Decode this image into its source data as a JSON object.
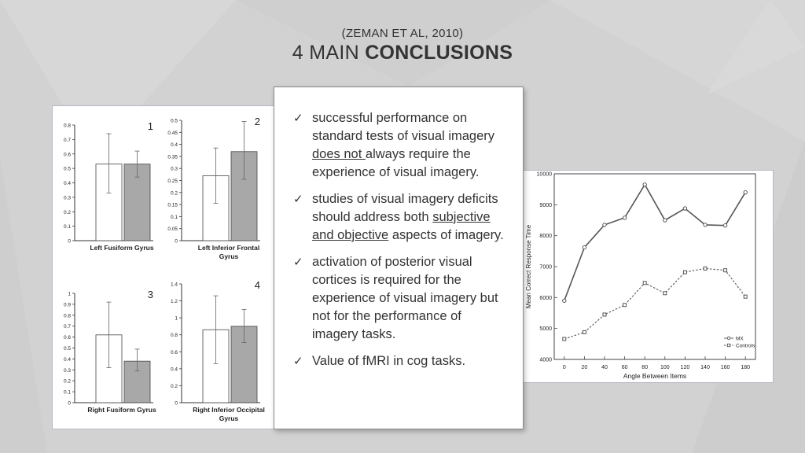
{
  "slide": {
    "subtitle": "(ZEMAN ET AL, 2010)",
    "title_plain": "4 MAIN ",
    "title_bold": "CONCLUSIONS",
    "background_color": "#d2d2d2"
  },
  "bullets": [
    {
      "pre": "successful performance on standard tests of visual imagery ",
      "underlined": "does not ",
      "post": "always require the experience of visual imagery."
    },
    {
      "pre": "studies of visual imagery deficits should address both ",
      "underlined": "subjective and objective",
      "post": " aspects of imagery."
    },
    {
      "pre": "activation of posterior visual cortices is required for the experience of visual imagery but not for the performance of imagery tasks.",
      "underlined": "",
      "post": ""
    },
    {
      "pre": "Value of fMRI in cog tasks.",
      "underlined": "",
      "post": ""
    }
  ],
  "icons": {
    "bullet": "checkmark-icon"
  },
  "chart_data": [
    {
      "type": "bar",
      "panel_number": "1",
      "xlabel": "Left Fusiform Gyrus",
      "ylim": [
        0,
        0.8
      ],
      "yticks": [
        "0",
        "0.1",
        "0.2",
        "0.3",
        "0.4",
        "0.5",
        "0.6",
        "0.7",
        "0.8"
      ],
      "bars": [
        {
          "value": 0.53,
          "err_low": 0.33,
          "err_high": 0.74,
          "fill": "#ffffff"
        },
        {
          "value": 0.53,
          "err_low": 0.44,
          "err_high": 0.62,
          "fill": "#a8a8a8"
        }
      ]
    },
    {
      "type": "bar",
      "panel_number": "2",
      "xlabel": "Left Inferior Frontal Gyrus",
      "ylim": [
        0,
        0.5
      ],
      "yticks": [
        "0",
        "0.05",
        "0.1",
        "0.15",
        "0.2",
        "0.25",
        "0.3",
        "0.35",
        "0.4",
        "0.45",
        "0.5"
      ],
      "bars": [
        {
          "value": 0.27,
          "err_low": 0.155,
          "err_high": 0.385,
          "fill": "#ffffff"
        },
        {
          "value": 0.37,
          "err_low": 0.255,
          "err_high": 0.495,
          "fill": "#a8a8a8"
        }
      ]
    },
    {
      "type": "bar",
      "panel_number": "3",
      "xlabel": "Right Fusiform Gyrus",
      "ylim": [
        0,
        1
      ],
      "yticks": [
        "0",
        "0.1",
        "0.2",
        "0.3",
        "0.4",
        "0.5",
        "0.6",
        "0.7",
        "0.8",
        "0.9",
        "1"
      ],
      "bars": [
        {
          "value": 0.62,
          "err_low": 0.32,
          "err_high": 0.92,
          "fill": "#ffffff"
        },
        {
          "value": 0.38,
          "err_low": 0.29,
          "err_high": 0.49,
          "fill": "#a8a8a8"
        }
      ]
    },
    {
      "type": "bar",
      "panel_number": "4",
      "xlabel": "Right Inferior Occipital Gyrus",
      "ylim": [
        0,
        1.4
      ],
      "yticks": [
        "0",
        "0.2",
        "0.4",
        "0.6",
        "0.8",
        "1",
        "1.2",
        "1.4"
      ],
      "bars": [
        {
          "value": 0.86,
          "err_low": 0.46,
          "err_high": 1.26,
          "fill": "#ffffff"
        },
        {
          "value": 0.9,
          "err_low": 0.71,
          "err_high": 1.1,
          "fill": "#a8a8a8"
        }
      ]
    },
    {
      "type": "line",
      "xlabel": "Angle Between Items",
      "ylabel": "Mean Correct Response Time",
      "x": [
        0,
        20,
        40,
        60,
        80,
        100,
        120,
        140,
        160,
        180
      ],
      "xlim": [
        -10,
        190
      ],
      "ylim": [
        4000,
        10000
      ],
      "yticks": [
        4000,
        5000,
        6000,
        7000,
        8000,
        9000,
        10000
      ],
      "legend_position": "bottom-right",
      "series": [
        {
          "name": "MX",
          "values": [
            5900,
            7620,
            8350,
            8580,
            9650,
            8500,
            8880,
            8350,
            8330,
            9400
          ],
          "style": "solid",
          "marker": "circle"
        },
        {
          "name": "Controls",
          "values": [
            4660,
            4880,
            5450,
            5760,
            6470,
            6140,
            6820,
            6940,
            6880,
            6030
          ],
          "style": "dashed",
          "marker": "square"
        }
      ]
    }
  ]
}
